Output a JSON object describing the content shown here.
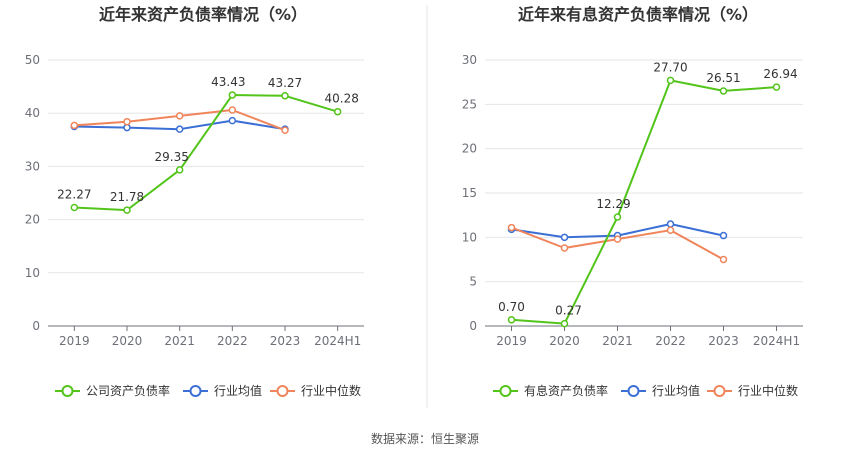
{
  "source": "数据来源：恒生聚源",
  "chart_data": [
    {
      "type": "line",
      "title": "近年来资产负债率情况（%）",
      "categories": [
        "2019",
        "2020",
        "2021",
        "2022",
        "2023",
        "2024H1"
      ],
      "ylim": [
        0,
        50
      ],
      "yticks": [
        0,
        10,
        20,
        30,
        40,
        50
      ],
      "grid": true,
      "legend_position": "bottom",
      "series": [
        {
          "name": "公司资产负债率",
          "color": "#52c41a",
          "values": [
            22.27,
            21.78,
            29.35,
            43.43,
            43.27,
            40.28
          ],
          "labels": [
            "22.27",
            "21.78",
            "29.35",
            "43.43",
            "43.27",
            "40.28"
          ]
        },
        {
          "name": "行业均值",
          "color": "#3b6fd6",
          "values": [
            37.5,
            37.3,
            37.0,
            38.6,
            37.0,
            null
          ]
        },
        {
          "name": "行业中位数",
          "color": "#f0845a",
          "values": [
            37.7,
            38.4,
            39.5,
            40.6,
            36.8,
            null
          ]
        }
      ]
    },
    {
      "type": "line",
      "title": "近年来有息资产负债率情况（%）",
      "categories": [
        "2019",
        "2020",
        "2021",
        "2022",
        "2023",
        "2024H1"
      ],
      "ylim": [
        0,
        30
      ],
      "yticks": [
        0,
        5,
        10,
        15,
        20,
        25,
        30
      ],
      "grid": true,
      "legend_position": "bottom",
      "series": [
        {
          "name": "有息资产负债率",
          "color": "#52c41a",
          "values": [
            0.7,
            0.27,
            12.29,
            27.7,
            26.51,
            26.94
          ],
          "labels": [
            "0.70",
            "0.27",
            "12.29",
            "27.70",
            "26.51",
            "26.94"
          ]
        },
        {
          "name": "行业均值",
          "color": "#3b6fd6",
          "values": [
            10.9,
            10.0,
            10.2,
            11.5,
            10.2,
            null
          ]
        },
        {
          "name": "行业中位数",
          "color": "#f0845a",
          "values": [
            11.1,
            8.8,
            9.8,
            10.8,
            7.5,
            null
          ]
        }
      ]
    }
  ]
}
